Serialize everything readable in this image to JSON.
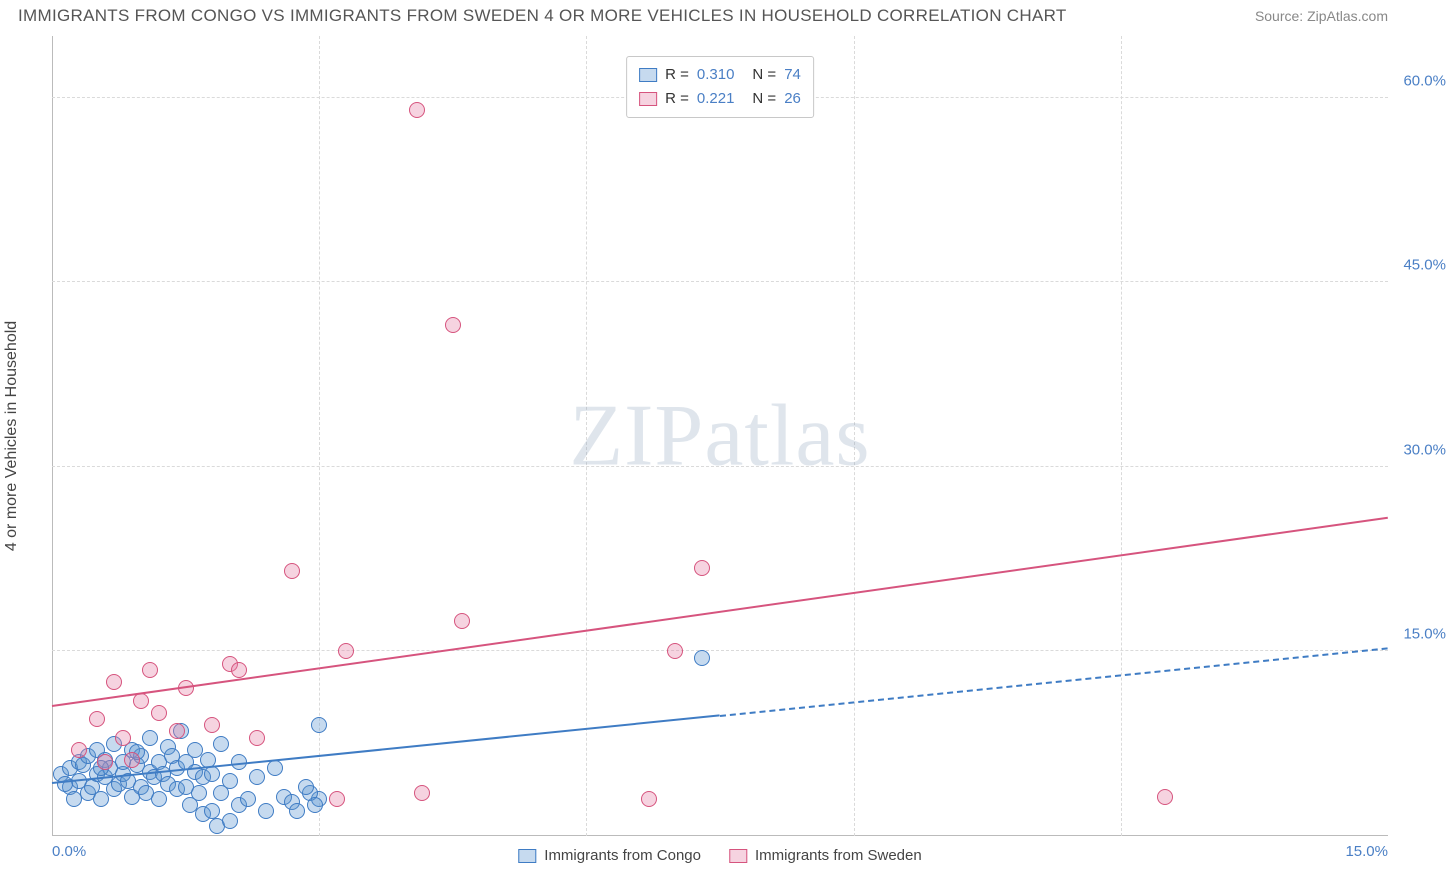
{
  "title": "IMMIGRANTS FROM CONGO VS IMMIGRANTS FROM SWEDEN 4 OR MORE VEHICLES IN HOUSEHOLD CORRELATION CHART",
  "source": "Source: ZipAtlas.com",
  "ylabel": "4 or more Vehicles in Household",
  "watermark_a": "ZIP",
  "watermark_b": "atlas",
  "chart": {
    "type": "scatter",
    "background_color": "#ffffff",
    "grid_color": "#dadada",
    "axis_color": "#bbbbbb",
    "xlim": [
      0,
      15
    ],
    "ylim": [
      0,
      65
    ],
    "y_ticks": [
      15,
      30,
      45,
      60
    ],
    "y_tick_labels": [
      "15.0%",
      "30.0%",
      "45.0%",
      "60.0%"
    ],
    "x_ticks": [
      0,
      15
    ],
    "x_tick_labels": [
      "0.0%",
      "15.0%"
    ],
    "x_gridlines": [
      3,
      6,
      9,
      12
    ],
    "marker_radius": 8,
    "marker_border_width": 1,
    "marker_fill_opacity": 0.35,
    "series": [
      {
        "name": "Immigrants from Congo",
        "color_stroke": "#3f7cc4",
        "color_fill": "rgba(93,150,210,0.35)",
        "R": "0.310",
        "N": "74",
        "trend": {
          "y0": 4.2,
          "y1": 15.2,
          "solid_until_x": 7.5
        },
        "points": [
          [
            0.1,
            5.0
          ],
          [
            0.2,
            4.0
          ],
          [
            0.2,
            5.5
          ],
          [
            0.25,
            3.0
          ],
          [
            0.3,
            6.0
          ],
          [
            0.3,
            4.5
          ],
          [
            0.35,
            5.8
          ],
          [
            0.4,
            3.5
          ],
          [
            0.4,
            6.5
          ],
          [
            0.45,
            4.0
          ],
          [
            0.5,
            5.0
          ],
          [
            0.5,
            7.0
          ],
          [
            0.55,
            3.0
          ],
          [
            0.6,
            4.8
          ],
          [
            0.6,
            6.2
          ],
          [
            0.65,
            5.5
          ],
          [
            0.7,
            3.8
          ],
          [
            0.7,
            7.5
          ],
          [
            0.75,
            4.2
          ],
          [
            0.8,
            5.0
          ],
          [
            0.8,
            6.0
          ],
          [
            0.85,
            4.5
          ],
          [
            0.9,
            3.2
          ],
          [
            0.9,
            7.0
          ],
          [
            0.95,
            5.8
          ],
          [
            1.0,
            4.0
          ],
          [
            1.0,
            6.5
          ],
          [
            1.05,
            3.5
          ],
          [
            1.1,
            5.2
          ],
          [
            1.1,
            8.0
          ],
          [
            1.15,
            4.8
          ],
          [
            1.2,
            6.0
          ],
          [
            1.2,
            3.0
          ],
          [
            1.25,
            5.0
          ],
          [
            1.3,
            7.2
          ],
          [
            1.3,
            4.2
          ],
          [
            1.35,
            6.5
          ],
          [
            1.4,
            3.8
          ],
          [
            1.4,
            5.5
          ],
          [
            1.45,
            8.5
          ],
          [
            1.5,
            4.0
          ],
          [
            1.5,
            6.0
          ],
          [
            1.55,
            2.5
          ],
          [
            1.6,
            5.2
          ],
          [
            1.6,
            7.0
          ],
          [
            1.65,
            3.5
          ],
          [
            1.7,
            4.8
          ],
          [
            1.7,
            1.8
          ],
          [
            1.75,
            6.2
          ],
          [
            1.8,
            2.0
          ],
          [
            1.8,
            5.0
          ],
          [
            1.85,
            0.8
          ],
          [
            1.9,
            3.5
          ],
          [
            1.9,
            7.5
          ],
          [
            2.0,
            1.2
          ],
          [
            2.0,
            4.5
          ],
          [
            2.1,
            2.5
          ],
          [
            2.1,
            6.0
          ],
          [
            2.2,
            3.0
          ],
          [
            2.3,
            4.8
          ],
          [
            2.4,
            2.0
          ],
          [
            2.5,
            5.5
          ],
          [
            2.6,
            3.2
          ],
          [
            2.7,
            2.8
          ],
          [
            2.75,
            2.0
          ],
          [
            3.0,
            9.0
          ],
          [
            3.0,
            3.0
          ],
          [
            2.9,
            3.5
          ],
          [
            2.85,
            4.0
          ],
          [
            2.95,
            2.5
          ],
          [
            7.3,
            14.5
          ],
          [
            0.15,
            4.2
          ],
          [
            0.55,
            5.5
          ],
          [
            0.95,
            6.8
          ]
        ]
      },
      {
        "name": "Immigrants from Sweden",
        "color_stroke": "#d6547e",
        "color_fill": "rgba(230,130,165,0.35)",
        "R": "0.221",
        "N": "26",
        "trend": {
          "y0": 10.5,
          "y1": 25.8,
          "solid_until_x": 15
        },
        "points": [
          [
            0.3,
            7.0
          ],
          [
            0.5,
            9.5
          ],
          [
            0.6,
            6.0
          ],
          [
            0.7,
            12.5
          ],
          [
            0.8,
            8.0
          ],
          [
            0.9,
            6.2
          ],
          [
            1.0,
            11.0
          ],
          [
            1.1,
            13.5
          ],
          [
            1.2,
            10.0
          ],
          [
            1.4,
            8.5
          ],
          [
            1.5,
            12.0
          ],
          [
            1.8,
            9.0
          ],
          [
            2.0,
            14.0
          ],
          [
            2.1,
            13.5
          ],
          [
            2.3,
            8.0
          ],
          [
            2.7,
            21.5
          ],
          [
            3.2,
            3.0
          ],
          [
            3.3,
            15.0
          ],
          [
            4.1,
            59.0
          ],
          [
            4.15,
            3.5
          ],
          [
            4.5,
            41.5
          ],
          [
            4.6,
            17.5
          ],
          [
            6.7,
            3.0
          ],
          [
            7.0,
            15.0
          ],
          [
            7.3,
            21.8
          ],
          [
            12.5,
            3.2
          ]
        ]
      }
    ]
  },
  "legend_top": {
    "r_label": "R =",
    "n_label": "N ="
  },
  "legend_bottom": [
    "Immigrants from Congo",
    "Immigrants from Sweden"
  ]
}
